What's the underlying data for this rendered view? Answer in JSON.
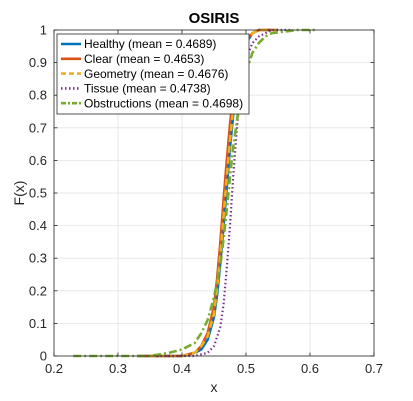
{
  "chart_data": {
    "type": "line",
    "title": "OSIRIS",
    "xlabel": "x",
    "ylabel": "F(x)",
    "xlim": [
      0.2,
      0.7
    ],
    "ylim": [
      0,
      1
    ],
    "xticks": [
      "0.2",
      "0.3",
      "0.4",
      "0.5",
      "0.6",
      "0.7"
    ],
    "yticks": [
      "0",
      "0.1",
      "0.2",
      "0.3",
      "0.4",
      "0.5",
      "0.6",
      "0.7",
      "0.8",
      "0.9",
      "1"
    ],
    "grid": true,
    "legend_position": "top-left",
    "series": [
      {
        "name": "Healthy (mean = 0.4689)",
        "color": "#0072BD",
        "dash": "solid",
        "x": [
          0.33,
          0.4,
          0.42,
          0.43,
          0.44,
          0.45,
          0.455,
          0.46,
          0.465,
          0.47,
          0.475,
          0.48,
          0.485,
          0.49,
          0.5,
          0.51,
          0.52,
          0.53,
          0.54
        ],
        "y": [
          0.0,
          0.0,
          0.01,
          0.02,
          0.05,
          0.12,
          0.19,
          0.29,
          0.4,
          0.52,
          0.64,
          0.74,
          0.82,
          0.89,
          0.96,
          0.99,
          1.0,
          1.0,
          1.0
        ]
      },
      {
        "name": "Clear (mean = 0.4653)",
        "color": "#D95319",
        "dash": "solid",
        "x": [
          0.33,
          0.4,
          0.42,
          0.43,
          0.44,
          0.45,
          0.455,
          0.46,
          0.465,
          0.47,
          0.475,
          0.48,
          0.485,
          0.49,
          0.5,
          0.51,
          0.52,
          0.53,
          0.55
        ],
        "y": [
          0.0,
          0.0,
          0.01,
          0.03,
          0.07,
          0.15,
          0.24,
          0.35,
          0.48,
          0.6,
          0.71,
          0.8,
          0.87,
          0.92,
          0.97,
          0.99,
          1.0,
          1.0,
          1.0
        ]
      },
      {
        "name": "Geometry (mean = 0.4676)",
        "color": "#EDB120",
        "dash": "dash",
        "x": [
          0.33,
          0.4,
          0.42,
          0.43,
          0.44,
          0.45,
          0.455,
          0.46,
          0.465,
          0.47,
          0.475,
          0.48,
          0.485,
          0.49,
          0.5,
          0.51,
          0.52,
          0.53,
          0.55
        ],
        "y": [
          0.0,
          0.0,
          0.01,
          0.03,
          0.06,
          0.13,
          0.21,
          0.31,
          0.43,
          0.55,
          0.66,
          0.76,
          0.84,
          0.9,
          0.96,
          0.99,
          1.0,
          1.0,
          1.0
        ]
      },
      {
        "name": "Tissue (mean = 0.4738)",
        "color": "#7E2F8E",
        "dash": "dot",
        "x": [
          0.36,
          0.42,
          0.44,
          0.45,
          0.46,
          0.465,
          0.47,
          0.475,
          0.48,
          0.485,
          0.49,
          0.495,
          0.5,
          0.51,
          0.52,
          0.53,
          0.54,
          0.55,
          0.57
        ],
        "y": [
          0.0,
          0.0,
          0.01,
          0.03,
          0.09,
          0.16,
          0.27,
          0.4,
          0.55,
          0.68,
          0.79,
          0.86,
          0.91,
          0.96,
          0.98,
          0.99,
          1.0,
          1.0,
          1.0
        ]
      },
      {
        "name": "Obstructions (mean = 0.4698)",
        "color": "#77AC30",
        "dash": "dashdot",
        "x": [
          0.23,
          0.3,
          0.35,
          0.38,
          0.4,
          0.42,
          0.43,
          0.44,
          0.45,
          0.46,
          0.465,
          0.47,
          0.475,
          0.48,
          0.49,
          0.5,
          0.51,
          0.52,
          0.53,
          0.54,
          0.56,
          0.58,
          0.61
        ],
        "y": [
          0.0,
          0.0,
          0.0,
          0.01,
          0.02,
          0.04,
          0.07,
          0.11,
          0.18,
          0.28,
          0.36,
          0.45,
          0.55,
          0.64,
          0.78,
          0.87,
          0.93,
          0.96,
          0.98,
          0.99,
          0.995,
          1.0,
          1.0
        ]
      }
    ]
  }
}
